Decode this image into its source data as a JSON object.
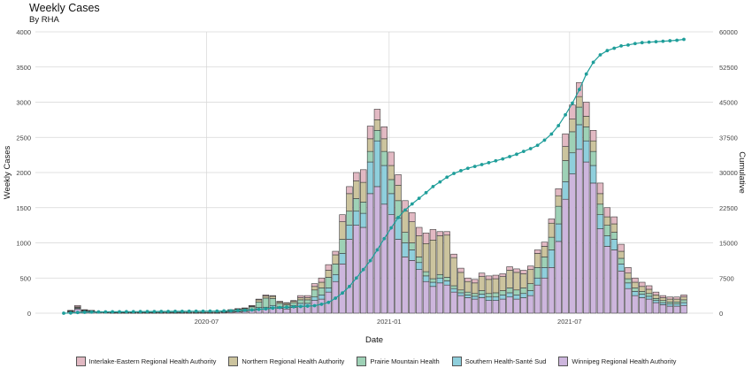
{
  "chart_data": {
    "type": "bar",
    "stacked": true,
    "title": "Weekly Cases",
    "subtitle": "By RHA",
    "xlabel": "Date",
    "ylabel": "Weekly Cases",
    "y2label": "Cumulative",
    "ylim": [
      0,
      4000
    ],
    "y2lim": [
      0,
      60000
    ],
    "y_ticks": [
      "0",
      "500",
      "1000",
      "1500",
      "2000",
      "2500",
      "3000",
      "3500",
      "4000"
    ],
    "y2_ticks": [
      "0",
      "7500",
      "15000",
      "22500",
      "30000",
      "37500",
      "45000",
      "52500",
      "60000"
    ],
    "x_ticks": [
      {
        "label": "2020-07",
        "week": 20.5
      },
      {
        "label": "2021-01",
        "week": 46.7
      },
      {
        "label": "2021-07",
        "week": 72.6
      }
    ],
    "series": [
      {
        "name": "Winnipeg Regional Health Authority",
        "color": "#cdb6dd",
        "values": [
          0,
          20,
          60,
          30,
          20,
          15,
          10,
          5,
          5,
          5,
          5,
          5,
          5,
          5,
          5,
          5,
          5,
          5,
          5,
          5,
          5,
          5,
          5,
          10,
          15,
          20,
          25,
          40,
          60,
          60,
          80,
          70,
          60,
          80,
          100,
          100,
          180,
          200,
          300,
          450,
          700,
          1050,
          1250,
          1220,
          1700,
          1800,
          1550,
          1400,
          1050,
          800,
          750,
          620,
          450,
          380,
          430,
          400,
          300,
          250,
          220,
          200,
          220,
          180,
          180,
          200,
          230,
          200,
          220,
          250,
          400,
          500,
          650,
          1020,
          1620,
          1980,
          2330,
          2150,
          1850,
          1200,
          950,
          900,
          600,
          350,
          250,
          220,
          200,
          150,
          120,
          100,
          100,
          110
        ]
      },
      {
        "name": "Southern Health-Santé Sud",
        "color": "#8fcfdc",
        "values": [
          0,
          5,
          10,
          5,
          5,
          2,
          2,
          2,
          2,
          2,
          2,
          2,
          2,
          2,
          2,
          2,
          2,
          2,
          2,
          2,
          2,
          2,
          2,
          5,
          5,
          5,
          5,
          10,
          20,
          25,
          30,
          20,
          20,
          30,
          40,
          40,
          50,
          60,
          60,
          100,
          150,
          200,
          200,
          200,
          450,
          650,
          550,
          300,
          300,
          200,
          150,
          100,
          80,
          60,
          70,
          60,
          50,
          40,
          40,
          40,
          50,
          50,
          50,
          60,
          60,
          60,
          60,
          70,
          100,
          150,
          250,
          250,
          250,
          300,
          350,
          300,
          250,
          200,
          150,
          150,
          100,
          80,
          60,
          50,
          40,
          30,
          30,
          30,
          30,
          40
        ]
      },
      {
        "name": "Prairie Mountain Health",
        "color": "#9ed1b6",
        "values": [
          0,
          5,
          10,
          5,
          5,
          2,
          2,
          2,
          2,
          2,
          2,
          2,
          2,
          2,
          2,
          2,
          2,
          2,
          2,
          2,
          2,
          2,
          2,
          10,
          20,
          30,
          30,
          40,
          80,
          130,
          100,
          50,
          40,
          40,
          50,
          50,
          100,
          100,
          150,
          150,
          200,
          200,
          180,
          160,
          150,
          150,
          200,
          200,
          250,
          150,
          100,
          80,
          60,
          50,
          50,
          50,
          40,
          40,
          40,
          40,
          50,
          50,
          60,
          60,
          70,
          70,
          80,
          100,
          150,
          150,
          180,
          250,
          300,
          300,
          250,
          200,
          200,
          150,
          150,
          100,
          80,
          60,
          50,
          40,
          40,
          30,
          30,
          30,
          30,
          40
        ]
      },
      {
        "name": "Northern Regional Health Authority",
        "color": "#ccc49e",
        "values": [
          0,
          5,
          10,
          5,
          5,
          2,
          2,
          2,
          2,
          2,
          2,
          2,
          2,
          2,
          2,
          2,
          2,
          2,
          2,
          2,
          2,
          2,
          2,
          5,
          5,
          5,
          10,
          10,
          30,
          30,
          30,
          20,
          20,
          20,
          30,
          30,
          50,
          80,
          100,
          130,
          250,
          250,
          250,
          280,
          180,
          150,
          180,
          200,
          220,
          300,
          300,
          300,
          400,
          550,
          550,
          600,
          400,
          250,
          150,
          150,
          200,
          200,
          200,
          200,
          250,
          250,
          200,
          200,
          200,
          150,
          200,
          150,
          200,
          180,
          150,
          150,
          150,
          150,
          120,
          120,
          100,
          80,
          80,
          70,
          60,
          50,
          40,
          40,
          40,
          40
        ]
      },
      {
        "name": "Interlake-Eastern Regional Health Authority",
        "color": "#e2b9c3",
        "values": [
          0,
          5,
          20,
          5,
          5,
          2,
          2,
          2,
          2,
          2,
          2,
          2,
          2,
          2,
          2,
          2,
          2,
          2,
          2,
          2,
          2,
          2,
          2,
          5,
          5,
          5,
          5,
          10,
          10,
          15,
          10,
          10,
          10,
          10,
          30,
          30,
          40,
          60,
          80,
          50,
          100,
          100,
          120,
          180,
          180,
          150,
          170,
          190,
          150,
          150,
          130,
          120,
          150,
          150,
          60,
          50,
          50,
          60,
          50,
          50,
          50,
          50,
          50,
          40,
          50,
          50,
          50,
          50,
          50,
          60,
          60,
          100,
          180,
          200,
          200,
          200,
          150,
          150,
          130,
          100,
          100,
          80,
          60,
          60,
          50,
          40,
          30,
          30,
          30,
          30
        ]
      }
    ],
    "cumulative": [
      0,
      40,
      150,
      200,
      240,
      270,
      290,
      300,
      310,
      320,
      330,
      340,
      350,
      360,
      370,
      380,
      390,
      400,
      410,
      420,
      430,
      440,
      450,
      480,
      520,
      570,
      620,
      690,
      800,
      930,
      1070,
      1200,
      1290,
      1360,
      1420,
      1500,
      1600,
      1900,
      2300,
      3200,
      4300,
      5700,
      7500,
      9300,
      11200,
      13500,
      15900,
      18200,
      20400,
      22000,
      23300,
      24500,
      25700,
      27000,
      28000,
      29000,
      29800,
      30400,
      30900,
      31300,
      31700,
      32100,
      32500,
      32900,
      33400,
      33900,
      34500,
      35100,
      35800,
      36900,
      38200,
      40000,
      42300,
      44800,
      47700,
      51000,
      53500,
      55100,
      56000,
      56500,
      57000,
      57200,
      57500,
      57700,
      57800,
      57900,
      58000,
      58100,
      58200,
      58400
    ]
  }
}
